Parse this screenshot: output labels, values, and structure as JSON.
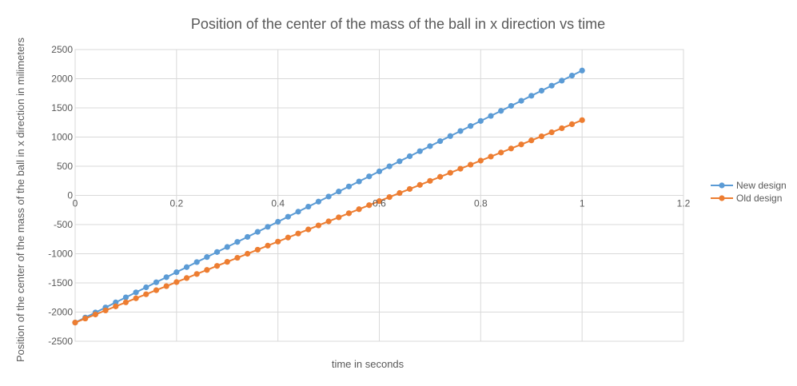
{
  "chart_data": {
    "type": "scatter",
    "title": "Position of the center of the mass of the ball in x direction vs time",
    "xlabel": "time in seconds",
    "ylabel": "Position of the center of the mass of the ball in x direction in milimeters",
    "xlim": [
      0,
      1.2
    ],
    "ylim": [
      -2500,
      2500
    ],
    "x_ticks": [
      0,
      0.2,
      0.4,
      0.6,
      0.8,
      1,
      1.2
    ],
    "x_tick_labels": [
      "0",
      "0.2",
      "0.4",
      "0.6",
      "0.8",
      "1",
      "1.2"
    ],
    "y_ticks": [
      2500,
      2000,
      1500,
      1000,
      500,
      0,
      -500,
      -1000,
      -1500,
      -2000,
      -2500
    ],
    "y_tick_labels": [
      "2500",
      "2000",
      "1500",
      "1000",
      "500",
      "0",
      "-500",
      "-1000",
      "-1500",
      "-2000",
      "-2500"
    ],
    "grid": true,
    "legend_position": "right",
    "x": [
      0,
      0.02,
      0.04,
      0.06,
      0.08,
      0.1,
      0.12,
      0.14,
      0.16,
      0.18,
      0.2,
      0.22,
      0.24,
      0.26,
      0.28,
      0.3,
      0.32,
      0.34,
      0.36,
      0.38,
      0.4,
      0.42,
      0.44,
      0.46,
      0.48,
      0.5,
      0.52,
      0.54,
      0.56,
      0.58,
      0.6,
      0.62,
      0.64,
      0.66,
      0.68,
      0.7,
      0.72,
      0.74,
      0.76,
      0.78,
      0.8,
      0.82,
      0.84,
      0.86,
      0.88,
      0.9,
      0.92,
      0.94,
      0.96,
      0.98,
      1
    ],
    "series": [
      {
        "name": "New design",
        "color": "#5b9bd5",
        "values": [
          -2180,
          -2093.6,
          -2007.2,
          -1920.8,
          -1834.4,
          -1748,
          -1661.6,
          -1575.2,
          -1488.8,
          -1402.4,
          -1316,
          -1229.6,
          -1143.2,
          -1056.8,
          -970.4,
          -884,
          -797.6,
          -711.2,
          -624.8,
          -538.4,
          -452,
          -365.6,
          -279.2,
          -192.8,
          -106.4,
          -20,
          66.4,
          152.8,
          239.2,
          325.6,
          412,
          498.4,
          584.8,
          671.2,
          757.6,
          844,
          930.4,
          1016.8,
          1103.2,
          1189.6,
          1276,
          1362.4,
          1448.8,
          1535.2,
          1621.6,
          1708,
          1794.4,
          1880.8,
          1967.2,
          2053.6,
          2140
        ]
      },
      {
        "name": "Old design",
        "color": "#ed7d31",
        "values": [
          -2180,
          -2110.6,
          -2041.2,
          -1971.8,
          -1902.4,
          -1833,
          -1763.6,
          -1694.2,
          -1624.8,
          -1555.4,
          -1486,
          -1416.6,
          -1347.2,
          -1277.8,
          -1208.4,
          -1139,
          -1069.6,
          -1000.2,
          -930.8,
          -861.4,
          -792,
          -722.6,
          -653.2,
          -583.8,
          -514.4,
          -445,
          -375.6,
          -306.2,
          -236.8,
          -167.4,
          -98,
          -28.6,
          40.8,
          110.2,
          179.6,
          249,
          318.4,
          387.8,
          457.2,
          526.6,
          596,
          665.4,
          734.8,
          804.2,
          873.6,
          943,
          1012.4,
          1081.8,
          1151.2,
          1220.6,
          1290
        ]
      }
    ]
  }
}
